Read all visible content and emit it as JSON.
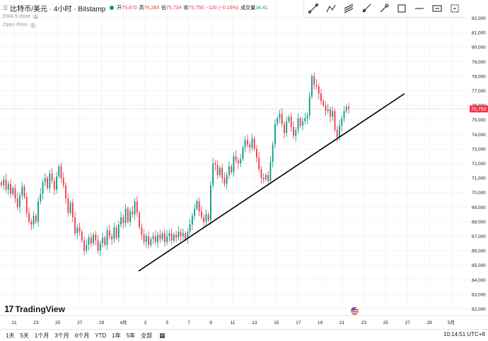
{
  "header": {
    "symbol": "比特币/美元 · 4小时 · Bitstamp",
    "open_label": "开",
    "open": "75,870",
    "high_label": "高",
    "high": "76,283",
    "low_label": "低",
    "low": "75,734",
    "close_label": "收",
    "close": "75,750",
    "change": "−120 (−0.16%)",
    "volume_label": "成交量",
    "volume": "34.41"
  },
  "indicators": [
    "EMA 9 close",
    "Open Price"
  ],
  "toolbar": [
    "trend-line",
    "polyline",
    "parallel-channel",
    "ray",
    "brush",
    "rectangle",
    "horizontal-line",
    "text",
    "measure"
  ],
  "range_buttons": [
    "1天",
    "5天",
    "1个月",
    "3个月",
    "6个月",
    "YTD",
    "1年",
    "5年",
    "全部"
  ],
  "clock": "10:14:51 UTC+8",
  "logo": "TradingView",
  "colors": {
    "up": "#089981",
    "down": "#f23645",
    "grid": "#f0f3fa",
    "trendline": "#000000",
    "price_tag": "#f23645"
  },
  "chart_data": {
    "type": "candlestick",
    "y_tick_labels": [
      "62,000",
      "63,000",
      "64,000",
      "65,000",
      "66,000",
      "67,000",
      "68,000",
      "69,000",
      "70,000",
      "71,000",
      "72,000",
      "73,000",
      "74,000",
      "75,000",
      "76,000",
      "77,000",
      "78,000",
      "79,000",
      "80,000",
      "81,000",
      "82,000"
    ],
    "ylim": [
      61500,
      82500
    ],
    "x_tick_labels": [
      "21",
      "23",
      "25",
      "27",
      "29",
      "4月",
      "3",
      "5",
      "7",
      "9",
      "11",
      "13",
      "15",
      "17",
      "19",
      "21",
      "23",
      "25",
      "27",
      "29",
      "5月"
    ],
    "last_price": "75,750",
    "last_value": 75750,
    "trendline": {
      "start": {
        "x": 1.8,
        "y": 64600
      },
      "end": {
        "x": 44.1,
        "y": 76800
      }
    },
    "closes": [
      70500,
      70900,
      70200,
      70600,
      69900,
      70300,
      69600,
      69000,
      69800,
      70400,
      69700,
      68600,
      68000,
      67800,
      68400,
      68000,
      69400,
      69900,
      70700,
      71000,
      70300,
      71300,
      70800,
      70200,
      71100,
      71800,
      71000,
      70500,
      69600,
      68600,
      69300,
      68300,
      67200,
      67600,
      67300,
      66700,
      66000,
      66400,
      66900,
      66500,
      67100,
      66700,
      66000,
      66500,
      66900,
      66400,
      67400,
      67000,
      66800,
      67600,
      66900,
      67800,
      68300,
      67900,
      68900,
      68000,
      68700,
      68500,
      69400,
      68600,
      67600,
      67100,
      66600,
      67000,
      66400,
      66800,
      67000,
      66600,
      67100,
      66800,
      67200,
      66600,
      67000,
      67200,
      66700,
      67100,
      66900,
      67300,
      67000,
      67200,
      66800,
      67300,
      67800,
      68400,
      68900,
      69400,
      68700,
      68300,
      68000,
      68500,
      68100,
      70500,
      72000,
      71900,
      71200,
      71700,
      71000,
      70600,
      71200,
      71800,
      71400,
      72500,
      72200,
      72000,
      72300,
      73100,
      73600,
      73300,
      73100,
      73700,
      73000,
      72400,
      71600,
      71000,
      70900,
      71200,
      70800,
      72100,
      73300,
      74700,
      75100,
      75400,
      74700,
      74100,
      74900,
      75200,
      74500,
      73900,
      74300,
      75100,
      74600,
      74900,
      75100,
      75300,
      76600,
      78000,
      77400,
      77300,
      76800,
      76300,
      76000,
      75600,
      75700,
      75200,
      75600,
      74300,
      73800,
      74600,
      75100,
      75600,
      75900,
      75750
    ]
  }
}
